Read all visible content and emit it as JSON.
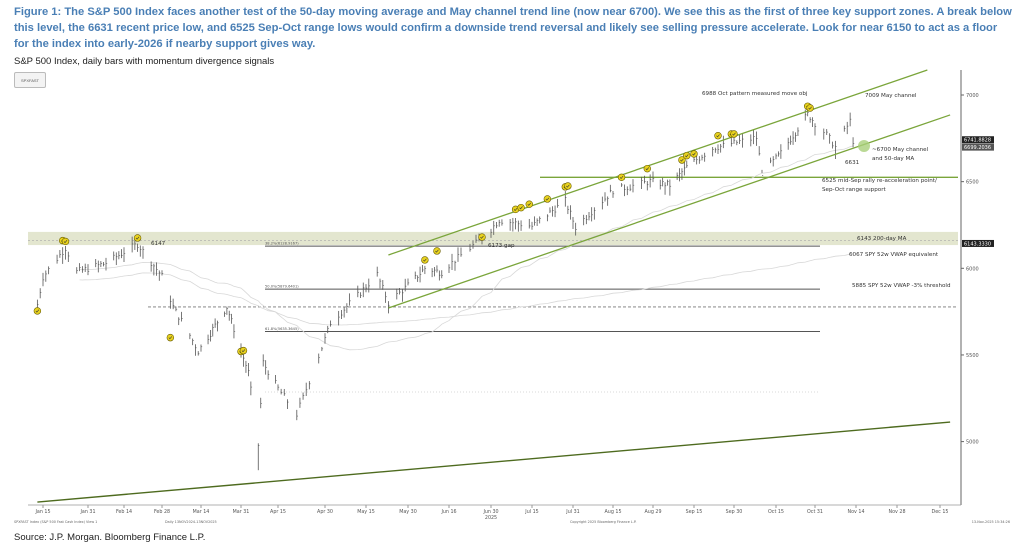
{
  "figure": {
    "caption": "Figure 1: The S&P 500 Index faces another test of the 50-day moving average and May channel trend line (now near 6700). We see this as the first of three key support zones. A break below this level, the 6631 recent price low, and 6525 Sep-Oct range lows would confirm a downside trend reversal and likely see selling pressure accelerate. Look for near 6150 to act as a floor for the index into early-2026 if nearby support gives way.",
    "subtitle": "S&P 500 Index, daily bars with momentum divergence signals",
    "legend_button": "SPXFAST",
    "source": "Source: J.P. Morgan. Bloomberg Finance L.P."
  },
  "footer": {
    "left": "SPXFAST Index (S&P 500 Fast Cash Index) View 1",
    "range": "Daily 13NOV2024-13NOV2025",
    "copyright": "Copyright 2025 Bloomberg Finance L.P.",
    "timestamp": "13-Nov-2025 15:34:26"
  },
  "chart_data": {
    "type": "bar",
    "bar_style": "daily OHLC bars",
    "xlabel": "2025",
    "ylabel": "",
    "ylim": [
      4650,
      7150
    ],
    "grid": false,
    "x_ticks": [
      "Jan 15",
      "Jan 31",
      "Feb 14",
      "Feb 28",
      "Mar 14",
      "Mar 31",
      "Apr 15",
      "Apr 30",
      "May 15",
      "May 30",
      "Jun 16",
      "Jun 30",
      "Jul 15",
      "Jul 31",
      "Aug 15",
      "Aug 29",
      "Sep 15",
      "Sep 30",
      "Oct 15",
      "Oct 31",
      "Nov 14",
      "Nov 28",
      "Dec 15"
    ],
    "x_tick_dates": [
      "2025-01-15",
      "2025-01-31",
      "2025-02-14",
      "2025-02-28",
      "2025-03-14",
      "2025-03-31",
      "2025-04-15",
      "2025-04-30",
      "2025-05-15",
      "2025-05-30",
      "2025-06-16",
      "2025-06-30",
      "2025-07-15",
      "2025-07-31",
      "2025-08-15",
      "2025-08-29",
      "2025-09-15",
      "2025-09-30",
      "2025-10-15",
      "2025-10-31",
      "2025-11-14",
      "2025-11-28",
      "2025-12-15"
    ],
    "y_ticks": [
      5000,
      5500,
      6000,
      6500,
      7000
    ],
    "price_path_approx": [
      [
        "2025-01-13",
        5790
      ],
      [
        "2025-01-15",
        5950
      ],
      [
        "2025-01-23",
        6118
      ],
      [
        "2025-01-27",
        5980
      ],
      [
        "2025-02-07",
        6030
      ],
      [
        "2025-02-19",
        6140
      ],
      [
        "2025-02-28",
        5954
      ],
      [
        "2025-03-04",
        5778
      ],
      [
        "2025-03-10",
        5614
      ],
      [
        "2025-03-13",
        5521
      ],
      [
        "2025-03-25",
        5776
      ],
      [
        "2025-04-03",
        5400
      ],
      [
        "2025-04-07",
        4980
      ],
      [
        "2025-04-09",
        5456
      ],
      [
        "2025-04-21",
        5158
      ],
      [
        "2025-05-02",
        5686
      ],
      [
        "2025-05-12",
        5844
      ],
      [
        "2025-05-19",
        5963
      ],
      [
        "2025-05-23",
        5802
      ],
      [
        "2025-06-06",
        6000
      ],
      [
        "2025-06-13",
        5977
      ],
      [
        "2025-06-27",
        6173
      ],
      [
        "2025-07-03",
        6279
      ],
      [
        "2025-07-15",
        6243
      ],
      [
        "2025-07-28",
        6389
      ],
      [
        "2025-08-01",
        6238
      ],
      [
        "2025-08-15",
        6449
      ],
      [
        "2025-08-28",
        6501
      ],
      [
        "2025-09-05",
        6481
      ],
      [
        "2025-09-12",
        6584
      ],
      [
        "2025-09-22",
        6693
      ],
      [
        "2025-10-08",
        6753
      ],
      [
        "2025-10-10",
        6552
      ],
      [
        "2025-10-17",
        6664
      ],
      [
        "2025-10-28",
        6890
      ],
      [
        "2025-11-04",
        6771
      ],
      [
        "2025-11-07",
        6700
      ],
      [
        "2025-11-12",
        6850
      ],
      [
        "2025-11-13",
        6737
      ]
    ],
    "momentum_signals": [
      [
        "2025-01-13",
        5754
      ],
      [
        "2025-01-22",
        6160
      ],
      [
        "2025-01-23",
        6155
      ],
      [
        "2025-02-19",
        6175
      ],
      [
        "2025-03-03",
        5600
      ],
      [
        "2025-03-31",
        5520
      ],
      [
        "2025-04-01",
        5525
      ],
      [
        "2025-06-06",
        6048
      ],
      [
        "2025-06-11",
        6100
      ],
      [
        "2025-06-27",
        6180
      ],
      [
        "2025-07-09",
        6340
      ],
      [
        "2025-07-11",
        6350
      ],
      [
        "2025-07-14",
        6370
      ],
      [
        "2025-07-21",
        6400
      ],
      [
        "2025-07-28",
        6470
      ],
      [
        "2025-07-29",
        6475
      ],
      [
        "2025-08-18",
        6525
      ],
      [
        "2025-08-27",
        6575
      ],
      [
        "2025-09-10",
        6625
      ],
      [
        "2025-09-12",
        6650
      ],
      [
        "2025-09-15",
        6660
      ],
      [
        "2025-09-24",
        6765
      ],
      [
        "2025-09-29",
        6775
      ],
      [
        "2025-09-30",
        6775
      ],
      [
        "2025-10-28",
        6935
      ],
      [
        "2025-10-29",
        6925
      ]
    ],
    "trend_lines": {
      "may_channel_upper": [
        [
          "2025-05-23",
          6077
        ],
        [
          "2025-12-10",
          7144
        ]
      ],
      "may_channel_lower": [
        [
          "2025-05-23",
          5771
        ],
        [
          "2025-12-19",
          6885
        ]
      ],
      "long_term_trend": [
        [
          "2025-01-13",
          4651
        ],
        [
          "2025-12-19",
          5113
        ]
      ]
    },
    "levels": {
      "range_support_6525": 6525,
      "ma200_band": [
        6134,
        6210
      ],
      "fib_38_2": 6128,
      "fib_50": 5880,
      "fib_61_8": 5635,
      "dashed_level": 5777,
      "dotted_level": 5286
    },
    "fib_labels": [
      "38.2%(6128.9167)",
      "50.0%(5879.6401)",
      "61.8%(5635.3645)"
    ],
    "last_price_labels": [
      "6741.8828",
      "6699.2036",
      "6143.3330"
    ],
    "annotations": {
      "a6988": "6988 Oct pattern measured move obj",
      "a7009": "7009 May channel",
      "a6700_1": "~6700 May channel",
      "a6700_2": "and 50-day MA",
      "a6631": "6631",
      "a6525_1": "6525 mid-Sep rally re-acceleration point/",
      "a6525_2": "Sep-Oct range support",
      "a6143": "6143 200-day MA",
      "a6067": "6067 SPY 52w VWAP equivalent",
      "a5885": "5885 SPY 52w VWAP -3% threshold",
      "a6147": "6147",
      "a6173": "6173 gap"
    },
    "colors": {
      "trend": "#7aa53a",
      "long_trend": "#4e6b1f",
      "band": "#e3e6cf",
      "signal": "#e8d21f",
      "bars": "#555555",
      "caption": "#4a7fb5"
    }
  }
}
